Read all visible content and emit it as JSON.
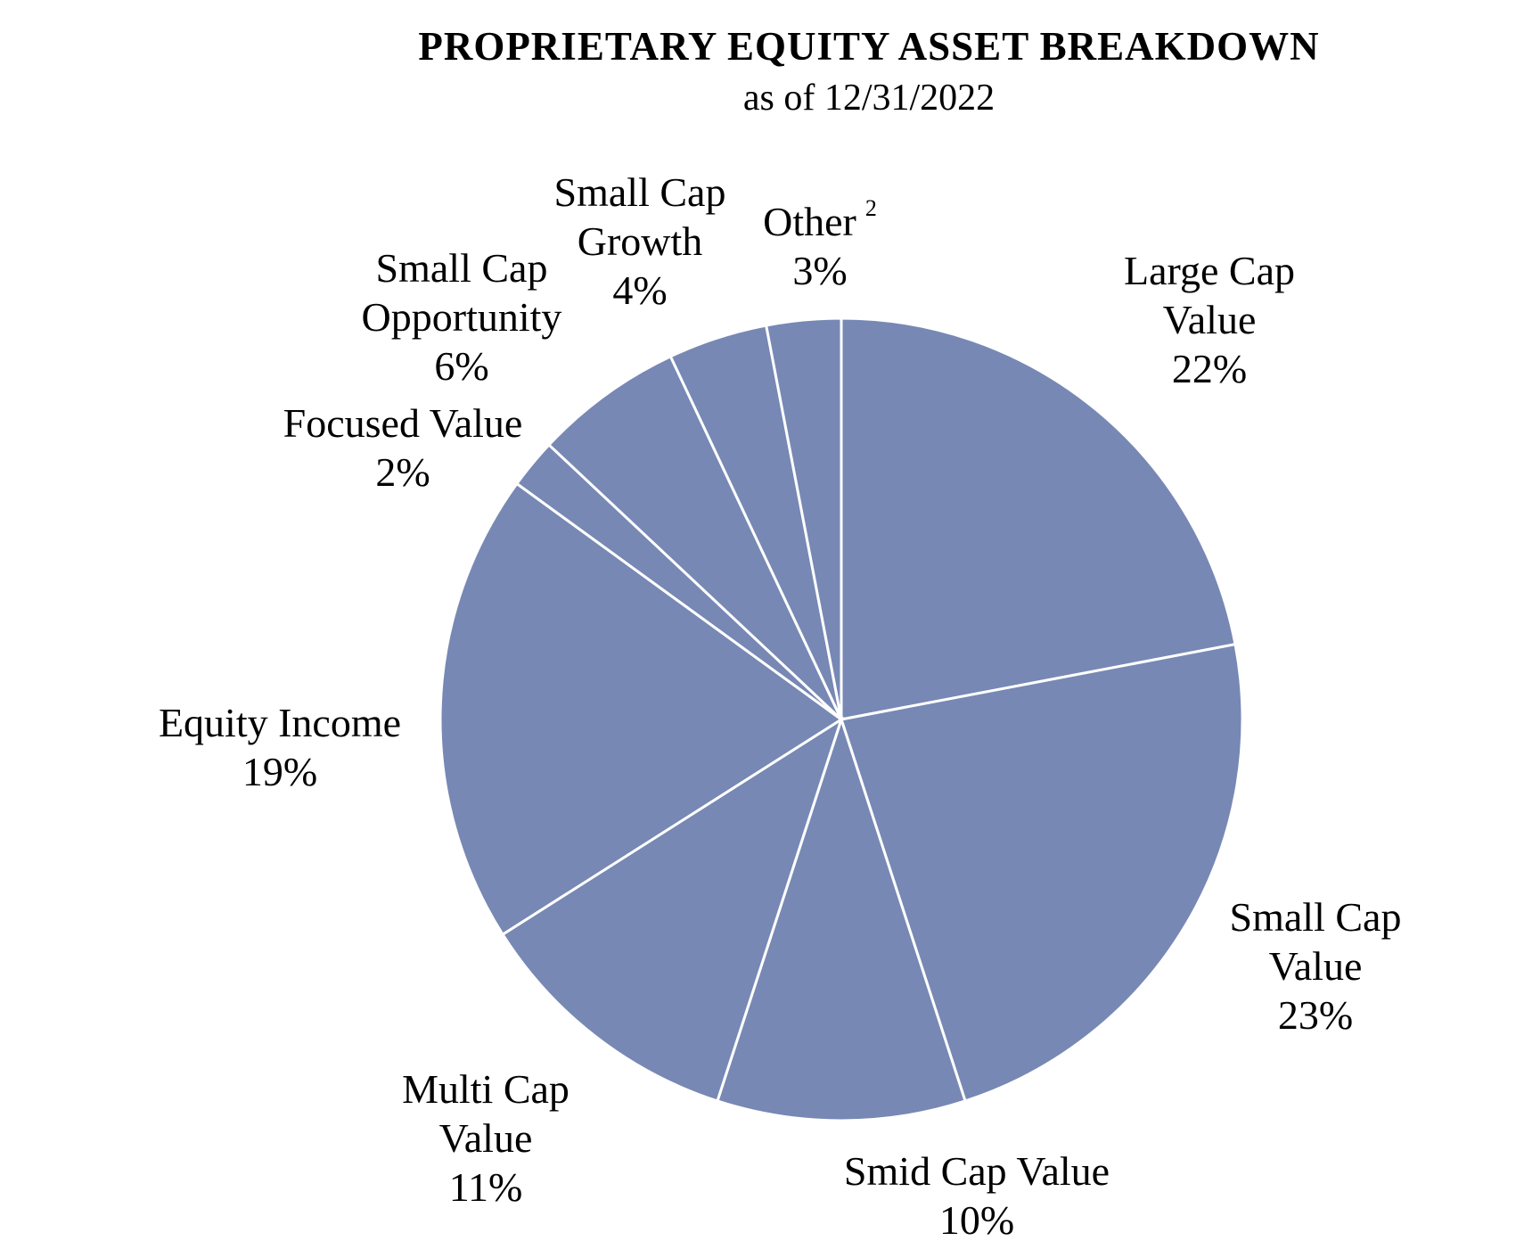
{
  "chart_data": {
    "type": "pie",
    "title": "PROPRIETARY EQUITY ASSET BREAKDOWN",
    "subtitle": "as of 12/31/2022",
    "categories": [
      "Large Cap Value",
      "Small Cap Value",
      "Smid Cap Value",
      "Multi Cap Value",
      "Equity Income",
      "Focused Value",
      "Small Cap Opportunity",
      "Small Cap Growth",
      "Other"
    ],
    "footnotes": [
      null,
      null,
      null,
      null,
      null,
      null,
      null,
      null,
      "2"
    ],
    "values": [
      22,
      23,
      10,
      11,
      19,
      2,
      6,
      4,
      3
    ],
    "value_labels": [
      "22%",
      "23%",
      "10%",
      "11%",
      "19%",
      "2%",
      "6%",
      "4%",
      "3%"
    ],
    "color": "#7788b4"
  }
}
